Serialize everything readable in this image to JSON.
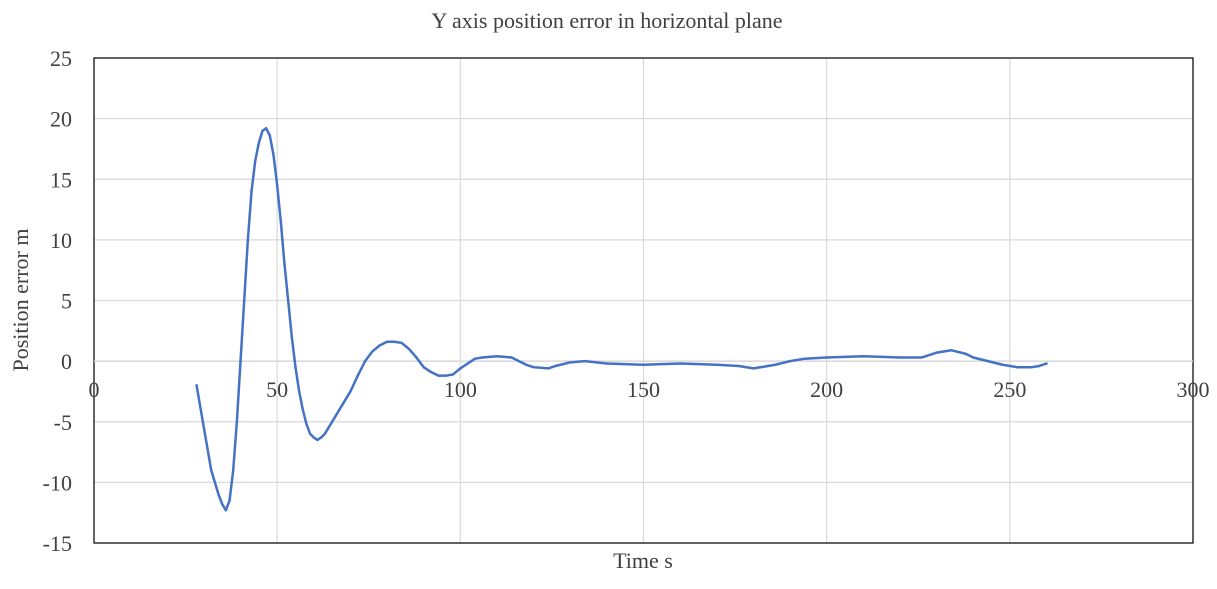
{
  "chart_data": {
    "type": "line",
    "title": "Y axis position error in horizontal plane",
    "xlabel": "Time  s",
    "ylabel": "Position error m",
    "xlim": [
      0,
      300
    ],
    "ylim": [
      -15,
      25
    ],
    "xticks": [
      0,
      50,
      100,
      150,
      200,
      250,
      300
    ],
    "yticks": [
      25,
      20,
      15,
      10,
      5,
      0,
      -5,
      -10,
      -15
    ],
    "grid": true,
    "legend": "none",
    "series": [
      {
        "color": "#4472c4",
        "x": [
          28,
          30,
          32,
          34,
          35,
          36,
          37,
          38,
          39,
          40,
          41,
          42,
          43,
          44,
          45,
          46,
          47,
          48,
          49,
          50,
          51,
          52,
          53,
          54,
          55,
          56,
          57,
          58,
          59,
          60,
          61,
          62,
          63,
          64,
          65,
          66,
          67,
          68,
          70,
          72,
          74,
          76,
          78,
          80,
          82,
          84,
          86,
          88,
          90,
          92,
          94,
          96,
          98,
          100,
          102,
          104,
          106,
          110,
          114,
          116,
          118,
          120,
          124,
          126,
          130,
          134,
          140,
          150,
          160,
          170,
          176,
          180,
          184,
          186,
          190,
          194,
          200,
          210,
          220,
          226,
          230,
          234,
          238,
          240,
          244,
          248,
          252,
          256,
          258,
          260
        ],
        "y": [
          -2.0,
          -5.5,
          -9.0,
          -11.0,
          -11.8,
          -12.3,
          -11.5,
          -9.0,
          -5.0,
          0.0,
          5.0,
          10.0,
          14.0,
          16.5,
          18.0,
          19.0,
          19.2,
          18.6,
          17.0,
          14.5,
          11.5,
          8.0,
          5.0,
          2.0,
          -0.5,
          -2.5,
          -4.0,
          -5.2,
          -6.0,
          -6.3,
          -6.5,
          -6.3,
          -6.0,
          -5.5,
          -5.0,
          -4.5,
          -4.0,
          -3.5,
          -2.5,
          -1.2,
          0.0,
          0.8,
          1.3,
          1.6,
          1.6,
          1.5,
          1.0,
          0.3,
          -0.5,
          -0.9,
          -1.2,
          -1.2,
          -1.1,
          -0.6,
          -0.2,
          0.2,
          0.3,
          0.4,
          0.3,
          0.0,
          -0.3,
          -0.5,
          -0.6,
          -0.4,
          -0.1,
          0.0,
          -0.2,
          -0.3,
          -0.2,
          -0.3,
          -0.4,
          -0.6,
          -0.4,
          -0.3,
          0.0,
          0.2,
          0.3,
          0.4,
          0.3,
          0.3,
          0.7,
          0.9,
          0.6,
          0.3,
          0.0,
          -0.3,
          -0.5,
          -0.5,
          -0.4,
          -0.2
        ]
      }
    ]
  }
}
